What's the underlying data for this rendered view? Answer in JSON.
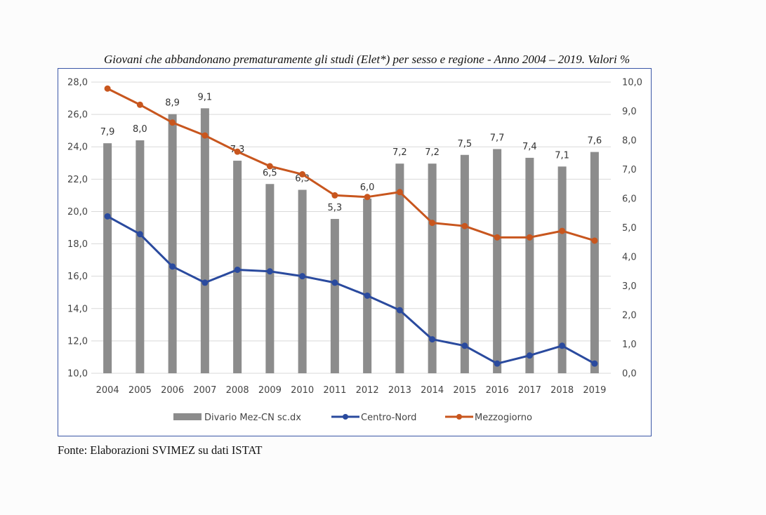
{
  "title": "Giovani che abbandonano prematuramente gli studi (Elet*) per sesso e regione - Anno 2004 – 2019. Valori %",
  "source": "Fonte: Elaborazioni SVIMEZ su dati ISTAT",
  "chart_data": {
    "type": "bar",
    "title": "Giovani che abbandonano prematuramente gli studi (Elet*) per sesso e regione - Anno 2004 – 2019. Valori %",
    "categories": [
      "2004",
      "2005",
      "2006",
      "2007",
      "2008",
      "2009",
      "2010",
      "2011",
      "2012",
      "2013",
      "2014",
      "2015",
      "2016",
      "2017",
      "2018",
      "2019"
    ],
    "y_left": {
      "ylim": [
        10.0,
        28.0
      ],
      "ticks": [
        "10,0",
        "12,0",
        "14,0",
        "16,0",
        "18,0",
        "20,0",
        "22,0",
        "24,0",
        "26,0",
        "28,0"
      ]
    },
    "y_right": {
      "ylim": [
        0.0,
        10.0
      ],
      "ticks": [
        "0,0",
        "1,0",
        "2,0",
        "3,0",
        "4,0",
        "5,0",
        "6,0",
        "7,0",
        "8,0",
        "9,0",
        "10,0"
      ]
    },
    "grid": true,
    "legend_position": "bottom",
    "series": [
      {
        "name": "Divario Mez-CN sc.dx",
        "type": "bar",
        "axis": "right",
        "color": "#8c8c8c",
        "values": [
          7.9,
          8.0,
          8.9,
          9.1,
          7.3,
          6.5,
          6.3,
          5.3,
          6.0,
          7.2,
          7.2,
          7.5,
          7.7,
          7.4,
          7.1,
          7.6
        ],
        "labels": [
          "7,9",
          "8,0",
          "8,9",
          "9,1",
          "7,3",
          "6,5",
          "6,3",
          "5,3",
          "6,0",
          "7,2",
          "7,2",
          "7,5",
          "7,7",
          "7,4",
          "7,1",
          "7,6"
        ]
      },
      {
        "name": "Centro-Nord",
        "type": "line",
        "axis": "left",
        "color": "#2a4a9e",
        "values": [
          19.7,
          18.6,
          16.6,
          15.6,
          16.4,
          16.3,
          16.0,
          15.6,
          14.8,
          13.9,
          12.1,
          11.7,
          10.6,
          11.1,
          11.7,
          10.6
        ]
      },
      {
        "name": "Mezzogiorno",
        "type": "line",
        "axis": "left",
        "color": "#c8561e",
        "values": [
          27.6,
          26.6,
          25.5,
          24.7,
          23.7,
          22.8,
          22.3,
          21.0,
          20.9,
          21.2,
          19.3,
          19.1,
          18.4,
          18.4,
          18.8,
          18.2
        ]
      }
    ]
  }
}
